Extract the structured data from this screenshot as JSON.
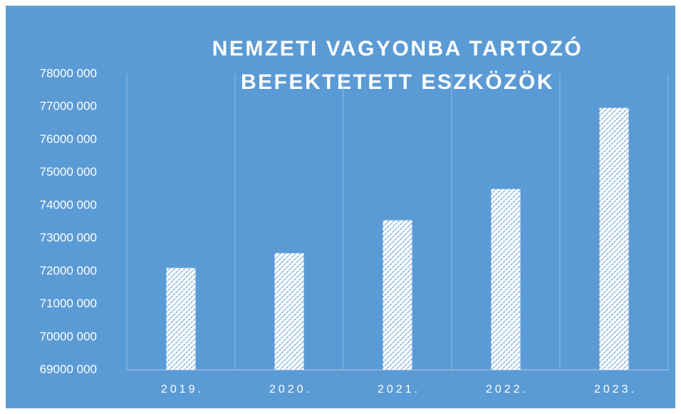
{
  "chart_data": {
    "type": "bar",
    "title": [
      "NEMZETI VAGYONBA TARTOZÓ",
      "BEFEKTETETT ESZKÖZÖK"
    ],
    "categories": [
      "2019.",
      "2020.",
      "2021.",
      "2022.",
      "2023."
    ],
    "values": [
      72100000,
      72550000,
      73550000,
      74500000,
      76970000
    ],
    "color": "#5b9bd5",
    "ylim": [
      69000000,
      78000000
    ],
    "yticks": [
      {
        "value": 69000000,
        "label": "69000 000"
      },
      {
        "value": 70000000,
        "label": "70000 000"
      },
      {
        "value": 71000000,
        "label": "71000 000"
      },
      {
        "value": 72000000,
        "label": "72000 000"
      },
      {
        "value": 73000000,
        "label": "73000 000"
      },
      {
        "value": 74000000,
        "label": "74000 000"
      },
      {
        "value": 75000000,
        "label": "75000 000"
      },
      {
        "value": 76000000,
        "label": "76000 000"
      },
      {
        "value": 77000000,
        "label": "77000 000"
      },
      {
        "value": 78000000,
        "label": "78000 000"
      }
    ],
    "grid": true
  }
}
